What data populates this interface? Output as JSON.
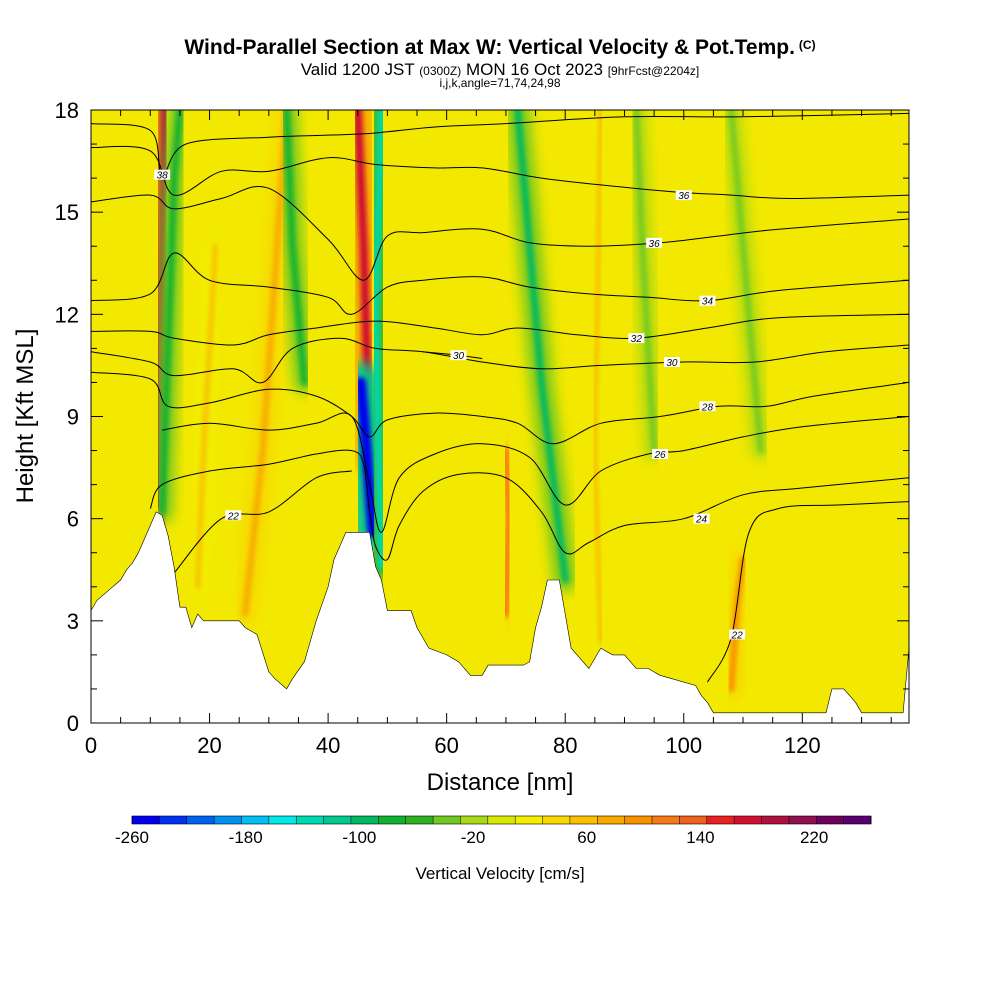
{
  "header": {
    "title": "Wind-Parallel Section at Max W: Vertical Velocity & Pot.Temp.",
    "copyright": "(C)",
    "valid_main_1": "Valid 1200 JST",
    "valid_small_1": "(0300Z)",
    "valid_main_2": "MON 16 Oct 2023",
    "valid_small_2": "[9hrFcst@2204z]",
    "indices": "i,j,k,angle=71,74,24,98"
  },
  "colors": {
    "background_field": "#f2e800",
    "terrain": "#ffffff",
    "contour": "#000000",
    "colorbar": [
      "#0000ee",
      "#0030f0",
      "#0060f0",
      "#0090f0",
      "#00c0f0",
      "#00e8e8",
      "#00d8b0",
      "#00c890",
      "#00b860",
      "#10b030",
      "#30b020",
      "#70c820",
      "#a8d818",
      "#d8e800",
      "#f2f000",
      "#f8d800",
      "#f8c000",
      "#f8a800",
      "#f89000",
      "#f87818",
      "#f06020",
      "#e82020",
      "#d01030",
      "#b01040",
      "#901050",
      "#700060",
      "#580070"
    ]
  },
  "chart_data": {
    "type": "heatmap",
    "xlabel": "Distance [nm]",
    "ylabel": "Height [Kft MSL]",
    "xlim": [
      0,
      138
    ],
    "ylim": [
      0,
      18
    ],
    "x_ticks": [
      0,
      20,
      40,
      60,
      80,
      100,
      120
    ],
    "y_ticks": [
      0,
      3,
      6,
      9,
      12,
      15,
      18
    ],
    "colorbar": {
      "label": "Vertical Velocity [cm/s]",
      "range": [
        -260,
        260
      ],
      "tick_labels": [
        -260,
        -180,
        -100,
        -20,
        60,
        140,
        220
      ]
    },
    "terrain_profile": [
      [
        0,
        3.3
      ],
      [
        1,
        3.6
      ],
      [
        3,
        3.9
      ],
      [
        5,
        4.2
      ],
      [
        6,
        4.5
      ],
      [
        7,
        4.7
      ],
      [
        8,
        5.0
      ],
      [
        9,
        5.4
      ],
      [
        10,
        5.8
      ],
      [
        11,
        6.2
      ],
      [
        12,
        6.1
      ],
      [
        13,
        5.5
      ],
      [
        14,
        4.6
      ],
      [
        15,
        3.4
      ],
      [
        16,
        3.4
      ],
      [
        17,
        2.8
      ],
      [
        18,
        3.2
      ],
      [
        19,
        3.0
      ],
      [
        25,
        3.0
      ],
      [
        26,
        2.8
      ],
      [
        28,
        2.6
      ],
      [
        30,
        1.5
      ],
      [
        31,
        1.3
      ],
      [
        33,
        1.0
      ],
      [
        34,
        1.3
      ],
      [
        36,
        1.8
      ],
      [
        37,
        2.4
      ],
      [
        38,
        3.0
      ],
      [
        40,
        4.0
      ],
      [
        41,
        4.8
      ],
      [
        42,
        5.2
      ],
      [
        43,
        5.6
      ],
      [
        47,
        5.6
      ],
      [
        48,
        4.6
      ],
      [
        49,
        4.2
      ],
      [
        50,
        3.3
      ],
      [
        54,
        3.3
      ],
      [
        55,
        2.8
      ],
      [
        56,
        2.5
      ],
      [
        57,
        2.2
      ],
      [
        60,
        2.0
      ],
      [
        62,
        1.8
      ],
      [
        64,
        1.4
      ],
      [
        66,
        1.4
      ],
      [
        67,
        1.7
      ],
      [
        73,
        1.7
      ],
      [
        74,
        1.8
      ],
      [
        75,
        2.8
      ],
      [
        76,
        3.4
      ],
      [
        77,
        4.2
      ],
      [
        79,
        4.2
      ],
      [
        80,
        3.2
      ],
      [
        81,
        2.2
      ],
      [
        82,
        2.0
      ],
      [
        84,
        1.6
      ],
      [
        86,
        2.2
      ],
      [
        88,
        2.0
      ],
      [
        90,
        2.0
      ],
      [
        92,
        1.6
      ],
      [
        94,
        1.6
      ],
      [
        96,
        1.4
      ],
      [
        98,
        1.3
      ],
      [
        102,
        1.1
      ],
      [
        103,
        0.8
      ],
      [
        104,
        0.6
      ],
      [
        105,
        0.3
      ],
      [
        124,
        0.3
      ],
      [
        125,
        1.0
      ],
      [
        127,
        1.0
      ],
      [
        129,
        0.6
      ],
      [
        130,
        0.3
      ],
      [
        137,
        0.3
      ],
      [
        138,
        2.2
      ]
    ],
    "updraft_bands": [
      {
        "w": 200,
        "path": [
          [
            11.5,
            6.4
          ],
          [
            12,
            12
          ],
          [
            12.5,
            18
          ]
        ]
      },
      {
        "w": 180,
        "path": [
          [
            47,
            7.8
          ],
          [
            46,
            14
          ],
          [
            45,
            18
          ]
        ]
      },
      {
        "w": 110,
        "path": [
          [
            70,
            3.2
          ],
          [
            70.5,
            6
          ],
          [
            70,
            8
          ]
        ]
      },
      {
        "w": 90,
        "path": [
          [
            108,
            1.0
          ],
          [
            109,
            3.5
          ],
          [
            110,
            4.8
          ]
        ]
      },
      {
        "w": 70,
        "path": [
          [
            26,
            3.2
          ],
          [
            29,
            8
          ],
          [
            33,
            18
          ]
        ]
      },
      {
        "w": 60,
        "path": [
          [
            86,
            2.4
          ],
          [
            85,
            8
          ],
          [
            86,
            18
          ]
        ]
      },
      {
        "w": 50,
        "path": [
          [
            18,
            4
          ],
          [
            19,
            8
          ],
          [
            21,
            14
          ]
        ]
      }
    ],
    "downdraft_bands": [
      {
        "w": -260,
        "path": [
          [
            47.5,
            5.6
          ],
          [
            46.5,
            8
          ],
          [
            45.5,
            10
          ]
        ]
      },
      {
        "w": -140,
        "path": [
          [
            49,
            4.6
          ],
          [
            48,
            12
          ],
          [
            49,
            18
          ]
        ]
      },
      {
        "w": -100,
        "path": [
          [
            80,
            4.2
          ],
          [
            76,
            10
          ],
          [
            74,
            14
          ],
          [
            72,
            18
          ]
        ]
      },
      {
        "w": -80,
        "path": [
          [
            12,
            6.2
          ],
          [
            13,
            11
          ],
          [
            14,
            16
          ],
          [
            15,
            18
          ]
        ]
      },
      {
        "w": -80,
        "path": [
          [
            36,
            10
          ],
          [
            34,
            14
          ],
          [
            33,
            18
          ]
        ]
      },
      {
        "w": -50,
        "path": [
          [
            95,
            8
          ],
          [
            93,
            14
          ],
          [
            92,
            18
          ]
        ]
      },
      {
        "w": -40,
        "path": [
          [
            113,
            8
          ],
          [
            110,
            14
          ],
          [
            108,
            18
          ]
        ]
      }
    ],
    "theta_contours": [
      {
        "value": 22,
        "points": [
          [
            14,
            4.4
          ],
          [
            22,
            6.0
          ],
          [
            30,
            6.2
          ],
          [
            38,
            7.2
          ],
          [
            44,
            7.4
          ]
        ],
        "label_at": [
          24,
          6.1
        ]
      },
      {
        "value": 22,
        "points": [
          [
            104,
            1.2
          ],
          [
            108,
            2.5
          ],
          [
            111,
            5.6
          ],
          [
            116,
            6.3
          ],
          [
            126,
            6.4
          ],
          [
            138,
            6.5
          ]
        ],
        "label_at": [
          109,
          2.6
        ]
      },
      {
        "value": 24,
        "points": [
          [
            10,
            6.3
          ],
          [
            12,
            7.0
          ],
          [
            20,
            7.4
          ],
          [
            30,
            7.6
          ],
          [
            38,
            7.9
          ],
          [
            44,
            8.0
          ],
          [
            46,
            7.6
          ],
          [
            47,
            6.2
          ],
          [
            48,
            5.2
          ],
          [
            50,
            4.8
          ],
          [
            52,
            5.8
          ],
          [
            56,
            6.8
          ],
          [
            62,
            7.3
          ],
          [
            70,
            7.2
          ],
          [
            76,
            6.2
          ],
          [
            80,
            5.0
          ],
          [
            84,
            5.3
          ],
          [
            90,
            5.8
          ],
          [
            100,
            6.0
          ],
          [
            110,
            6.7
          ],
          [
            120,
            6.9
          ],
          [
            138,
            7.2
          ]
        ],
        "label_at": [
          103,
          6.0
        ]
      },
      {
        "value": 26,
        "points": [
          [
            12,
            8.6
          ],
          [
            20,
            8.8
          ],
          [
            30,
            8.6
          ],
          [
            38,
            8.8
          ],
          [
            44,
            9.0
          ],
          [
            47,
            7.0
          ],
          [
            49,
            5.6
          ],
          [
            52,
            7.2
          ],
          [
            58,
            7.9
          ],
          [
            66,
            8.2
          ],
          [
            74,
            7.8
          ],
          [
            80,
            6.4
          ],
          [
            86,
            7.4
          ],
          [
            94,
            7.9
          ],
          [
            100,
            8.0
          ],
          [
            110,
            8.4
          ],
          [
            120,
            8.7
          ],
          [
            138,
            9.0
          ]
        ],
        "label_at": [
          96,
          7.9
        ]
      },
      {
        "value": 28,
        "points": [
          [
            0,
            10.3
          ],
          [
            10,
            10.1
          ],
          [
            13,
            9.3
          ],
          [
            20,
            9.4
          ],
          [
            30,
            9.8
          ],
          [
            38,
            9.6
          ],
          [
            44,
            9.0
          ],
          [
            47,
            8.4
          ],
          [
            50,
            8.9
          ],
          [
            58,
            9.1
          ],
          [
            66,
            9.0
          ],
          [
            72,
            8.8
          ],
          [
            78,
            8.2
          ],
          [
            86,
            8.8
          ],
          [
            96,
            9.0
          ],
          [
            106,
            9.3
          ],
          [
            114,
            9.3
          ],
          [
            122,
            9.6
          ],
          [
            138,
            10.0
          ]
        ],
        "label_at": [
          104,
          9.3
        ]
      },
      {
        "value": 30,
        "points": [
          [
            0,
            10.9
          ],
          [
            10,
            10.6
          ],
          [
            14,
            10.2
          ],
          [
            24,
            10.4
          ],
          [
            29,
            10.0
          ],
          [
            34,
            11.0
          ],
          [
            42,
            11.3
          ],
          [
            48,
            11.0
          ],
          [
            56,
            10.9
          ],
          [
            66,
            10.6
          ],
          [
            76,
            10.4
          ],
          [
            86,
            10.5
          ],
          [
            100,
            10.6
          ],
          [
            112,
            10.6
          ],
          [
            124,
            10.9
          ],
          [
            138,
            11.1
          ]
        ],
        "label_at": [
          98,
          10.6
        ]
      },
      {
        "value": 30,
        "points": [
          [
            56,
            10.9
          ],
          [
            62,
            10.8
          ],
          [
            66,
            10.7
          ]
        ],
        "label_at": [
          62,
          10.8
        ]
      },
      {
        "value": 32,
        "points": [
          [
            0,
            11.5
          ],
          [
            10,
            11.5
          ],
          [
            14,
            11.3
          ],
          [
            24,
            11.1
          ],
          [
            30,
            11.4
          ],
          [
            38,
            11.6
          ],
          [
            48,
            11.8
          ],
          [
            58,
            11.6
          ],
          [
            66,
            11.4
          ],
          [
            72,
            11.6
          ],
          [
            82,
            11.4
          ],
          [
            92,
            11.3
          ],
          [
            104,
            11.6
          ],
          [
            116,
            11.9
          ],
          [
            138,
            12.0
          ]
        ],
        "label_at": [
          92,
          11.3
        ]
      },
      {
        "value": 34,
        "points": [
          [
            0,
            12.4
          ],
          [
            10,
            12.6
          ],
          [
            14,
            13.8
          ],
          [
            20,
            13.0
          ],
          [
            30,
            12.8
          ],
          [
            40,
            12.5
          ],
          [
            44,
            12.0
          ],
          [
            50,
            12.8
          ],
          [
            56,
            13.0
          ],
          [
            66,
            13.1
          ],
          [
            74,
            12.8
          ],
          [
            84,
            12.6
          ],
          [
            94,
            12.5
          ],
          [
            104,
            12.4
          ],
          [
            116,
            12.7
          ],
          [
            138,
            13.0
          ]
        ],
        "label_at": [
          104,
          12.4
        ]
      },
      {
        "value": 36,
        "points": [
          [
            0,
            15.3
          ],
          [
            10,
            15.5
          ],
          [
            14,
            15.1
          ],
          [
            22,
            15.4
          ],
          [
            30,
            15.7
          ],
          [
            40,
            14.2
          ],
          [
            46,
            13.0
          ],
          [
            50,
            14.3
          ],
          [
            56,
            14.4
          ],
          [
            66,
            14.5
          ],
          [
            74,
            14.1
          ],
          [
            84,
            14.0
          ],
          [
            96,
            14.1
          ],
          [
            106,
            14.3
          ],
          [
            116,
            14.5
          ],
          [
            138,
            14.8
          ]
        ],
        "label_at": [
          95,
          14.1
        ]
      },
      {
        "value": 36,
        "points": [
          [
            0,
            16.9
          ],
          [
            10,
            16.8
          ],
          [
            14,
            15.5
          ],
          [
            22,
            16.2
          ],
          [
            30,
            16.2
          ],
          [
            40,
            16.6
          ],
          [
            48,
            16.4
          ],
          [
            58,
            16.3
          ],
          [
            66,
            16.3
          ],
          [
            76,
            16.0
          ],
          [
            86,
            15.8
          ],
          [
            98,
            15.6
          ],
          [
            108,
            15.5
          ],
          [
            118,
            15.4
          ],
          [
            138,
            15.5
          ]
        ],
        "label_at": [
          100,
          15.5
        ]
      },
      {
        "value": 38,
        "points": [
          [
            0,
            17.6
          ],
          [
            10,
            17.4
          ],
          [
            12,
            16.1
          ],
          [
            16,
            17.0
          ],
          [
            30,
            17.2
          ],
          [
            46,
            17.3
          ],
          [
            58,
            17.5
          ],
          [
            70,
            17.6
          ],
          [
            90,
            17.8
          ],
          [
            110,
            17.8
          ],
          [
            138,
            17.9
          ]
        ],
        "label_at": [
          12,
          16.1
        ]
      }
    ]
  }
}
